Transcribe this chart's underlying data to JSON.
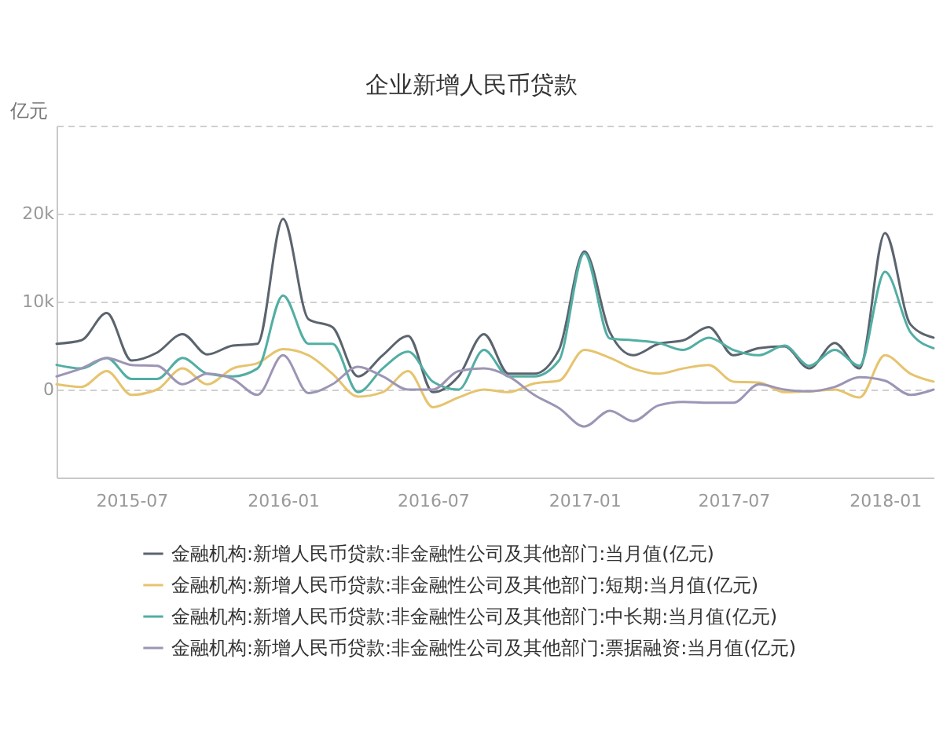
{
  "chart_data": {
    "type": "line",
    "title": "企业新增人民币贷款",
    "ylabel": "亿元",
    "x": [
      "2015-04",
      "2015-05",
      "2015-06",
      "2015-07",
      "2015-08",
      "2015-09",
      "2015-10",
      "2015-11",
      "2015-12",
      "2016-01",
      "2016-02",
      "2016-03",
      "2016-04",
      "2016-05",
      "2016-06",
      "2016-07",
      "2016-08",
      "2016-09",
      "2016-10",
      "2016-11",
      "2016-12",
      "2017-01",
      "2017-02",
      "2017-03",
      "2017-04",
      "2017-05",
      "2017-06",
      "2017-07",
      "2017-08",
      "2017-09",
      "2017-10",
      "2017-11",
      "2017-12",
      "2018-01",
      "2018-02",
      "2018-03"
    ],
    "series": [
      {
        "name": "金融机构:新增人民币贷款:非金融性公司及其他部门:当月值(亿元)",
        "color": "#5b646e",
        "values": [
          5200,
          5600,
          8700,
          3300,
          4200,
          6300,
          4000,
          5000,
          5200,
          19400,
          8000,
          7100,
          1500,
          3900,
          6100,
          -300,
          1500,
          6300,
          1800,
          1800,
          4500,
          15700,
          6500,
          3900,
          5200,
          5600,
          7100,
          3900,
          4700,
          4900,
          2400,
          5300,
          2400,
          17800,
          7400,
          5900
        ]
      },
      {
        "name": "金融机构:新增人民币贷款:非金融性公司及其他部门:短期:当月值(亿元)",
        "color": "#e6c46e",
        "values": [
          600,
          300,
          2100,
          -600,
          0,
          2400,
          600,
          2400,
          3000,
          4600,
          3900,
          1800,
          -800,
          -300,
          2100,
          -2000,
          -900,
          0,
          -300,
          700,
          1000,
          4500,
          3600,
          2400,
          1800,
          2400,
          2800,
          900,
          800,
          -300,
          -200,
          0,
          -900,
          3900,
          1800,
          900
        ]
      },
      {
        "name": "金融机构:新增人民币贷款:非金融性公司及其他部门:中长期:当月值(亿元)",
        "color": "#52aea3",
        "values": [
          2800,
          2400,
          3600,
          1200,
          1200,
          3600,
          1800,
          1500,
          2400,
          10700,
          5200,
          5200,
          -300,
          2400,
          4300,
          900,
          0,
          4500,
          1500,
          1500,
          3300,
          15500,
          5800,
          5600,
          5300,
          4500,
          5900,
          4500,
          3900,
          5000,
          2700,
          4500,
          2700,
          13400,
          6500,
          4700
        ]
      },
      {
        "name": "金融机构:新增人民币贷款:非金融性公司及其他部门:票据融资:当月值(亿元)",
        "color": "#9c95b5",
        "values": [
          1500,
          2400,
          3600,
          2800,
          2700,
          600,
          1800,
          1200,
          -600,
          3900,
          -400,
          600,
          2600,
          1500,
          0,
          0,
          2100,
          2400,
          1500,
          -600,
          -2100,
          -4200,
          -2400,
          -3600,
          -1800,
          -1400,
          -1500,
          -1500,
          600,
          0,
          -200,
          300,
          1400,
          1000,
          -600,
          0
        ]
      }
    ],
    "xlim": [
      "2015-04",
      "2018-03"
    ],
    "xticks": [
      "2015-07",
      "2016-01",
      "2016-07",
      "2017-01",
      "2017-07",
      "2018-01"
    ],
    "ylim": [
      -10000,
      30000
    ],
    "yticks": [
      0,
      {
        "value": 10000,
        "label": "10k"
      },
      {
        "value": 20000,
        "label": "20k"
      },
      {
        "value": 30000,
        "label": null
      }
    ],
    "grid": "y",
    "legend": "bottom"
  }
}
